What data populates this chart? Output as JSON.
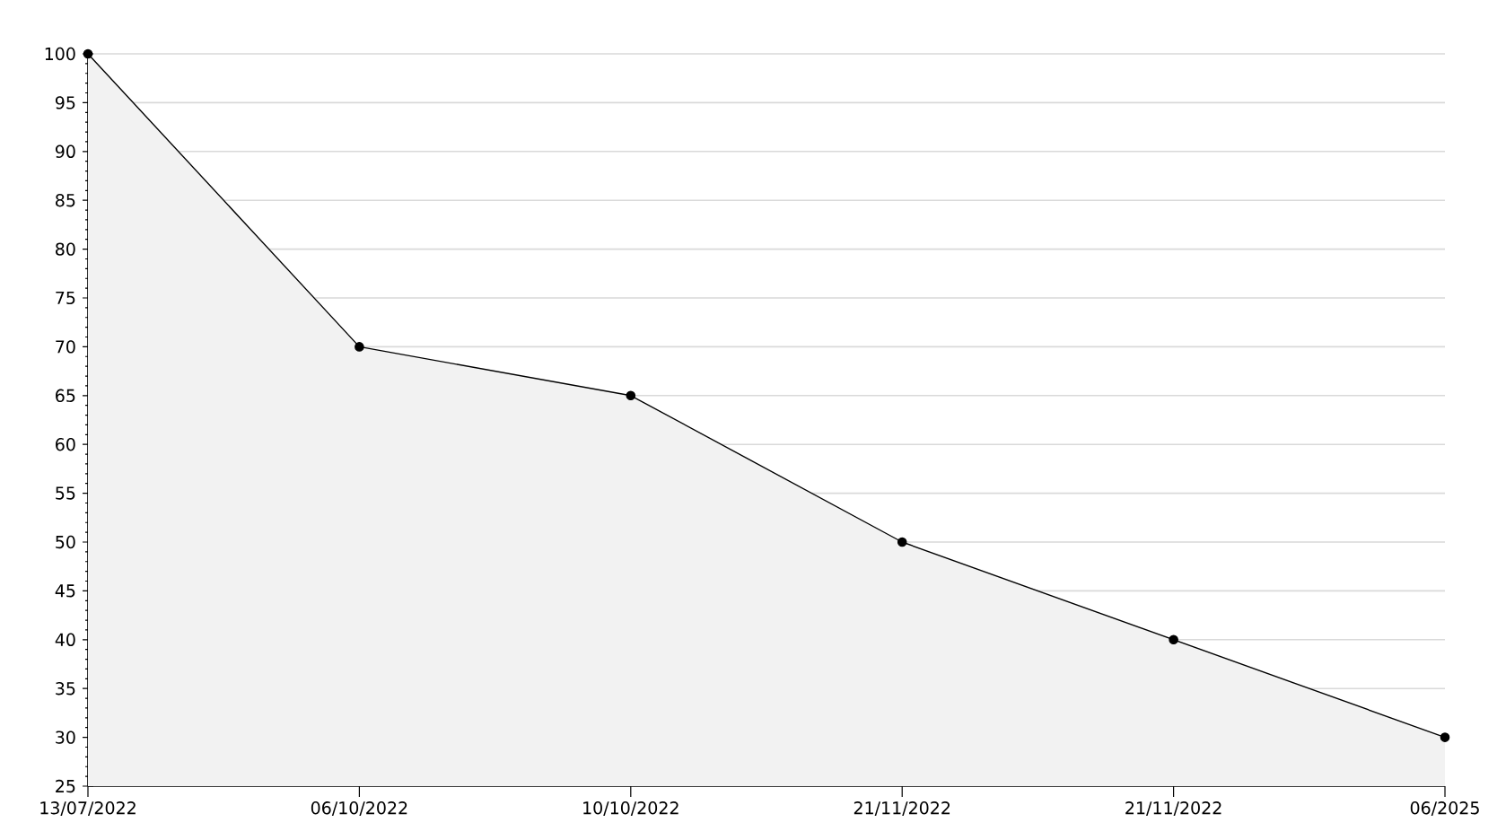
{
  "chart_data": {
    "type": "area",
    "categories": [
      "13/07/2022",
      "06/10/2022",
      "10/10/2022",
      "21/11/2022",
      "21/11/2022",
      "06/2025"
    ],
    "series": [
      {
        "color": "#000000",
        "values": [
          100,
          70,
          65,
          50,
          40,
          30
        ]
      }
    ],
    "ylim": [
      25,
      100
    ],
    "yticks": [
      25,
      30,
      35,
      40,
      45,
      50,
      55,
      60,
      65,
      70,
      75,
      80,
      85,
      90,
      95,
      100
    ],
    "grid": "y",
    "marker": "circle",
    "line_style": "solid"
  }
}
